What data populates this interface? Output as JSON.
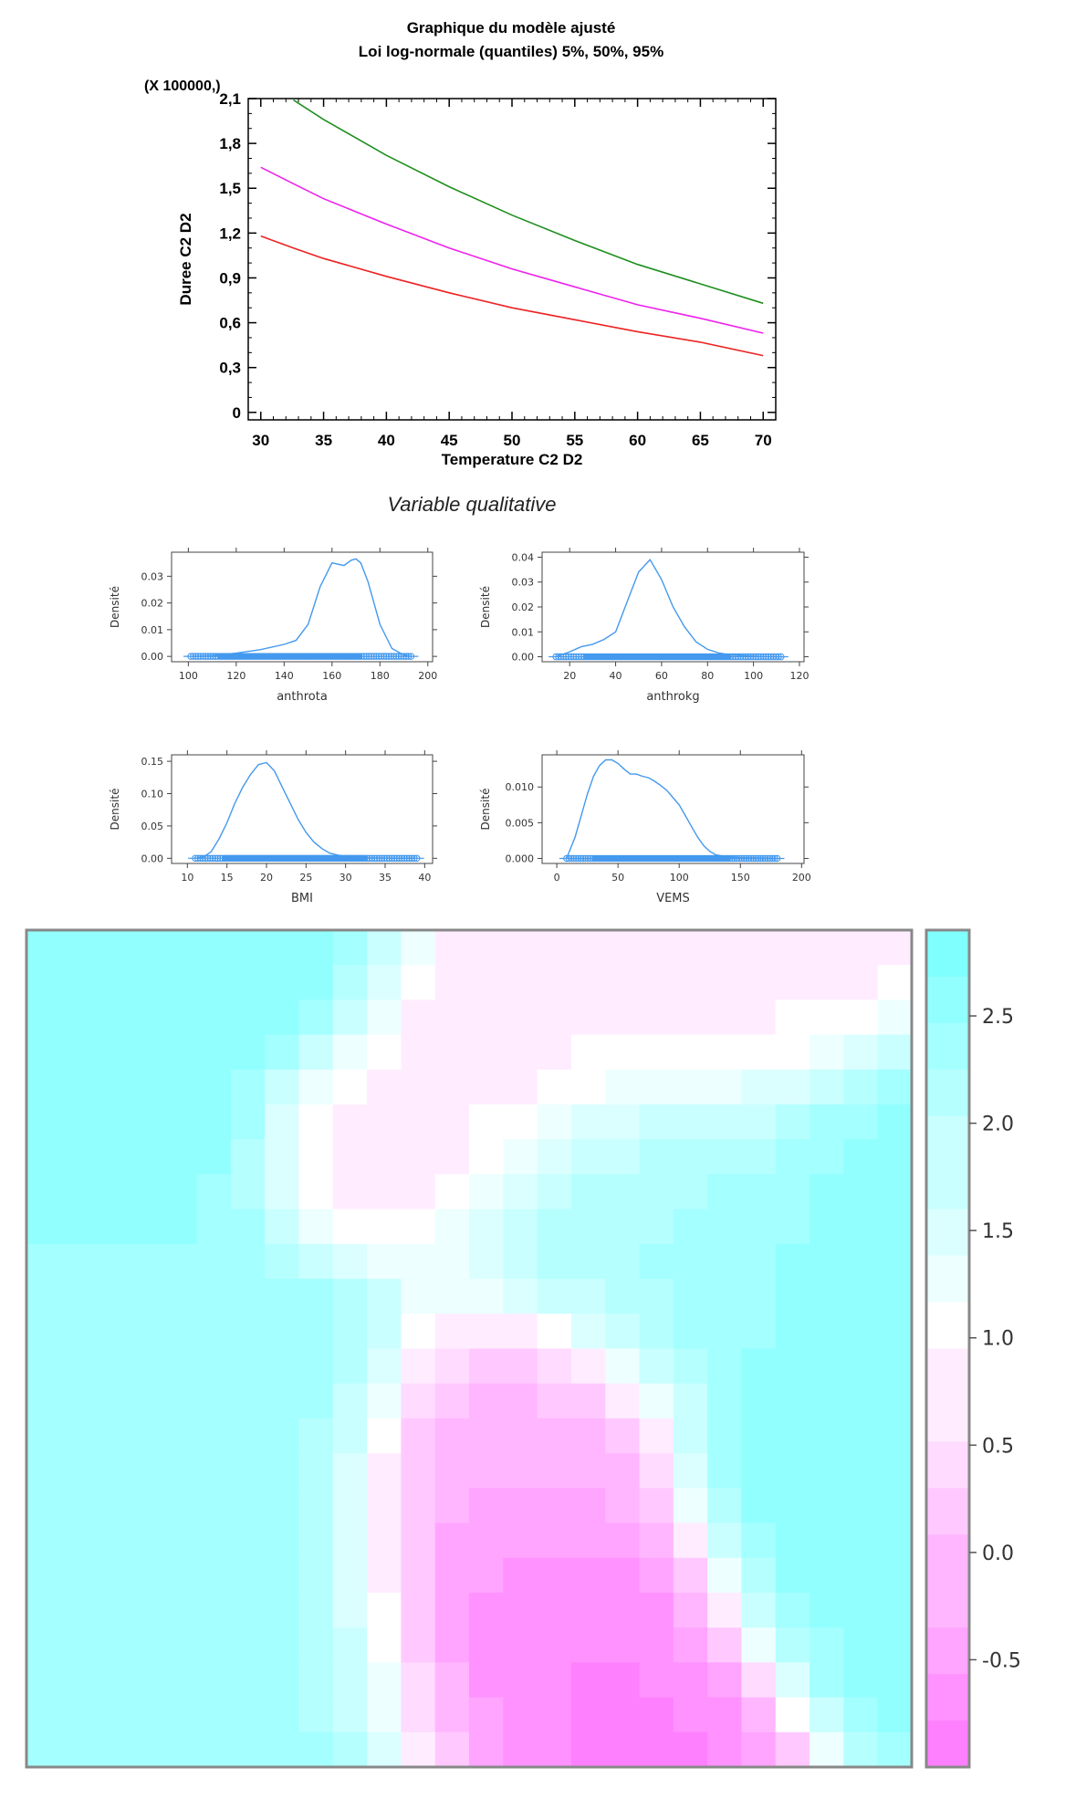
{
  "chart_data": [
    {
      "type": "line",
      "title": "Graphique du modèle ajusté",
      "subtitle": "Loi log-normale (quantiles) 5%,  50%,  95%",
      "multiplier_label": "(X 100000,)",
      "xlabel": "Temperature C2 D2",
      "ylabel": "Duree C2 D2",
      "xlim": [
        29,
        71
      ],
      "ylim": [
        -0.05,
        2.1
      ],
      "xticks": [
        "30",
        "35",
        "40",
        "45",
        "50",
        "55",
        "60",
        "65",
        "70"
      ],
      "yticks": [
        "0",
        "0,3",
        "0,6",
        "0,9",
        "1,2",
        "1,5",
        "1,8",
        "2,1"
      ],
      "x": [
        30,
        32.6,
        35,
        40,
        45,
        50,
        55,
        60,
        65,
        70
      ],
      "series": [
        {
          "name": "5%",
          "color": "#ee2222",
          "values": [
            1.18,
            1.1,
            1.03,
            0.91,
            0.8,
            0.7,
            0.62,
            0.54,
            0.47,
            0.38
          ]
        },
        {
          "name": "50%",
          "color": "#ee22ee",
          "values": [
            1.64,
            1.53,
            1.43,
            1.26,
            1.1,
            0.96,
            0.84,
            0.72,
            0.63,
            0.53
          ]
        },
        {
          "name": "95%",
          "color": "#1f8f1f",
          "values": [
            null,
            2.09,
            1.96,
            1.72,
            1.51,
            1.32,
            1.15,
            0.99,
            0.86,
            0.73
          ]
        }
      ]
    },
    {
      "type": "area",
      "title": "Variable qualitative",
      "color": "#4499ee",
      "panels": [
        {
          "xlabel": "anthrota",
          "ylabel": "Densité",
          "xlim": [
            93,
            202
          ],
          "ylim": [
            -0.002,
            0.039
          ],
          "xticks": [
            "100",
            "120",
            "140",
            "160",
            "180",
            "200"
          ],
          "yticks": [
            "0.00",
            "0.01",
            "0.02",
            "0.03"
          ],
          "x": [
            101,
            110,
            120,
            130,
            140,
            145,
            150,
            155,
            160,
            165,
            168,
            170,
            172,
            175,
            180,
            185,
            190,
            193
          ],
          "values": [
            0.0,
            0.0003,
            0.0012,
            0.0025,
            0.0045,
            0.006,
            0.012,
            0.026,
            0.035,
            0.034,
            0.036,
            0.0365,
            0.035,
            0.028,
            0.012,
            0.003,
            0.0005,
            0.0
          ]
        },
        {
          "xlabel": "anthrokg",
          "ylabel": "Densité",
          "xlim": [
            8,
            122
          ],
          "ylim": [
            -0.002,
            0.042
          ],
          "xticks": [
            "20",
            "40",
            "60",
            "80",
            "100",
            "120"
          ],
          "yticks": [
            "0.00",
            "0.01",
            "0.02",
            "0.03",
            "0.04"
          ],
          "x": [
            14,
            20,
            25,
            30,
            35,
            40,
            45,
            50,
            55,
            60,
            65,
            70,
            75,
            80,
            85,
            90,
            95,
            100,
            105,
            112
          ],
          "values": [
            0.0,
            0.002,
            0.004,
            0.005,
            0.007,
            0.01,
            0.022,
            0.034,
            0.039,
            0.031,
            0.02,
            0.012,
            0.006,
            0.003,
            0.0015,
            0.0008,
            0.0004,
            0.0002,
            0.0001,
            0.0
          ]
        },
        {
          "xlabel": "BMI",
          "ylabel": "Densité",
          "xlim": [
            8,
            41
          ],
          "ylim": [
            -0.008,
            0.16
          ],
          "xticks": [
            "10",
            "15",
            "20",
            "25",
            "30",
            "35",
            "40"
          ],
          "yticks": [
            "0.00",
            "0.05",
            "0.10",
            "0.15"
          ],
          "x": [
            11,
            12,
            13,
            14,
            15,
            16,
            17,
            18,
            19,
            20,
            21,
            22,
            23,
            24,
            25,
            26,
            27,
            28,
            29,
            30,
            31,
            32,
            33,
            35,
            37,
            39
          ],
          "values": [
            0.0,
            0.002,
            0.01,
            0.03,
            0.055,
            0.085,
            0.11,
            0.13,
            0.145,
            0.148,
            0.135,
            0.11,
            0.085,
            0.06,
            0.04,
            0.025,
            0.015,
            0.008,
            0.005,
            0.003,
            0.002,
            0.001,
            0.0005,
            0.0002,
            0.0001,
            0.0
          ]
        },
        {
          "xlabel": "VEMS",
          "ylabel": "Densité",
          "xlim": [
            -12,
            202
          ],
          "ylim": [
            -0.0007,
            0.0145
          ],
          "xticks": [
            "0",
            "50",
            "100",
            "150",
            "200"
          ],
          "yticks": [
            "0.000",
            "0.005",
            "0.010"
          ],
          "x": [
            8,
            15,
            20,
            25,
            30,
            35,
            40,
            45,
            50,
            55,
            60,
            65,
            70,
            75,
            80,
            85,
            90,
            95,
            100,
            105,
            110,
            115,
            120,
            125,
            130,
            140,
            150,
            165,
            180
          ],
          "values": [
            0.0,
            0.003,
            0.006,
            0.009,
            0.0115,
            0.013,
            0.0138,
            0.0138,
            0.0133,
            0.0125,
            0.0118,
            0.0118,
            0.0115,
            0.0113,
            0.0108,
            0.0102,
            0.0095,
            0.0085,
            0.0075,
            0.006,
            0.0045,
            0.003,
            0.0018,
            0.001,
            0.0005,
            0.0002,
            0.0001,
            5e-05,
            0.0
          ]
        }
      ]
    },
    {
      "type": "heatmap",
      "colorbar_ticks": [
        "2.5",
        "2.0",
        "1.5",
        "1.0",
        "0.5",
        "0.0",
        "-0.5"
      ],
      "colorbar_values": [
        2.5,
        2.0,
        1.5,
        1.0,
        0.5,
        0.0,
        -0.5
      ],
      "range": [
        -1.0,
        2.9
      ],
      "low_color": "#ff80ff",
      "high_color": "#80ffff",
      "peaks": [
        {
          "x": 0.58,
          "y": 0.86,
          "value": -0.9,
          "spread": 0.11
        },
        {
          "x": 0.55,
          "y": 0.62,
          "value": -0.2,
          "spread": 0.09
        },
        {
          "x": 0.39,
          "y": 0.27,
          "value": 0.5,
          "spread": 0.07
        },
        {
          "x": 0.55,
          "y": 0.16,
          "value": 0.6,
          "spread": 0.08
        },
        {
          "x": 0.75,
          "y": 0.07,
          "value": 0.7,
          "spread": 0.09
        },
        {
          "x": 0.07,
          "y": 0.14,
          "value": 2.7,
          "spread": 0.15
        },
        {
          "x": 0.2,
          "y": 0.54,
          "value": 2.4,
          "spread": 0.12
        },
        {
          "x": 0.93,
          "y": 0.42,
          "value": 2.6,
          "spread": 0.11
        },
        {
          "x": 0.94,
          "y": 0.68,
          "value": 2.7,
          "spread": 0.1
        },
        {
          "x": 0.25,
          "y": 0.92,
          "value": 2.4,
          "spread": 0.12
        },
        {
          "x": 0.7,
          "y": 0.34,
          "value": 2.2,
          "spread": 0.11
        },
        {
          "x": 0.02,
          "y": 0.55,
          "value": 2.3,
          "spread": 0.09
        }
      ]
    }
  ]
}
